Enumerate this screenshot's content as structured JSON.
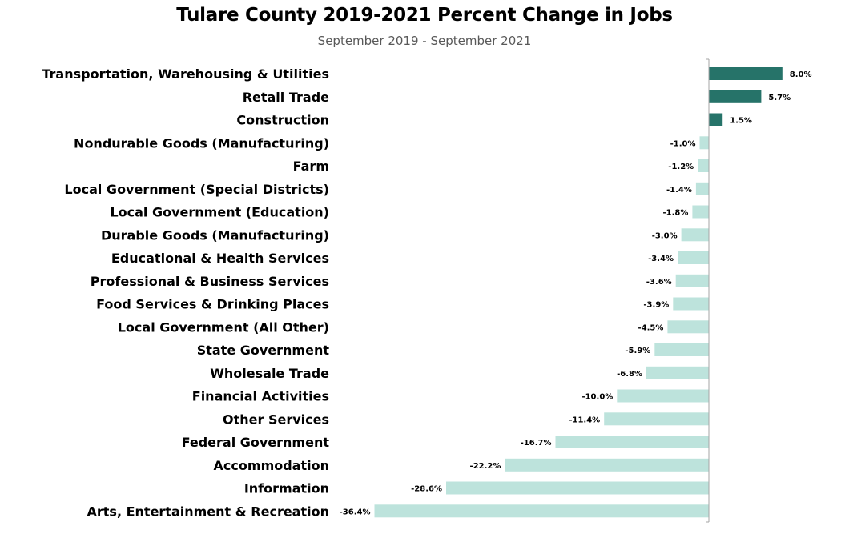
{
  "chart_data": {
    "type": "bar",
    "orientation": "horizontal",
    "title": "Tulare County 2019-2021 Percent Change in Jobs",
    "subtitle": "September 2019 - September 2021",
    "categories": [
      "Transportation, Warehousing & Utilities",
      "Retail Trade",
      "Construction",
      "Nondurable Goods (Manufacturing)",
      "Farm",
      "Local Government (Special Districts)",
      "Local Government (Education)",
      "Durable Goods (Manufacturing)",
      "Educational & Health Services",
      "Professional & Business Services",
      "Food Services & Drinking Places",
      "Local Government (All Other)",
      "State Government",
      "Wholesale Trade",
      "Financial Activities",
      "Other Services",
      "Federal Government",
      "Accommodation",
      "Information",
      "Arts, Entertainment & Recreation"
    ],
    "values": [
      8.0,
      5.7,
      1.5,
      -1.0,
      -1.2,
      -1.4,
      -1.8,
      -3.0,
      -3.4,
      -3.6,
      -3.9,
      -4.5,
      -5.9,
      -6.8,
      -10.0,
      -11.4,
      -16.7,
      -22.2,
      -28.6,
      -36.4
    ],
    "value_labels": [
      "8.0%",
      "5.7%",
      "1.5%",
      "-1.0%",
      "-1.2%",
      "-1.4%",
      "-1.8%",
      "-3.0%",
      "-3.4%",
      "-3.6%",
      "-3.9%",
      "-4.5%",
      "-5.9%",
      "-6.8%",
      "-10.0%",
      "-11.4%",
      "-16.7%",
      "-22.2%",
      "-28.6%",
      "-36.4%"
    ],
    "unit": "%",
    "xlim": [
      -36.4,
      8.0
    ],
    "grid": false,
    "colors": {
      "positive": "#267369",
      "negative": "#bde3dc",
      "axis": "#a6a6a6"
    }
  }
}
